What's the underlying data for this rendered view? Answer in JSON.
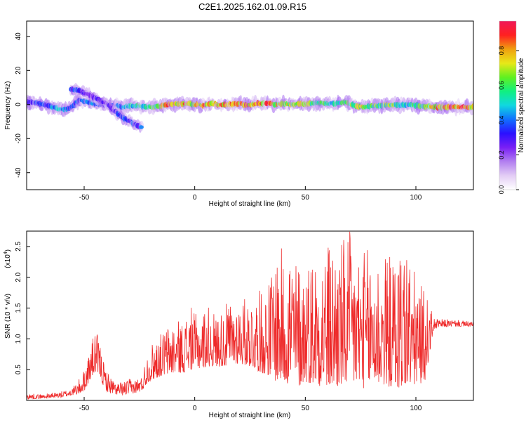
{
  "figure": {
    "title": "C2E1.2025.162.01.09.R15"
  },
  "colors": {
    "axis": "#000000",
    "snr_line": "#ee2a2a",
    "background": "#ffffff",
    "colormap": [
      "#ffffff",
      "#e3cdf5",
      "#b27ff0",
      "#7a1ff5",
      "#2b10ff",
      "#1070ff",
      "#10d8e0",
      "#10f080",
      "#60f020",
      "#e8e818",
      "#f0a010",
      "#ff2020",
      "#f01858"
    ]
  },
  "chart_data": [
    {
      "type": "heatmap",
      "xlabel": "Height of straight line (km)",
      "ylabel": "Frequency (Hz)",
      "xlim": [
        -76,
        126
      ],
      "ylim": [
        -50,
        49
      ],
      "xticks": [
        -50,
        0,
        50,
        100
      ],
      "yticks": [
        40,
        20,
        0,
        -20,
        -40
      ],
      "ytick_labels": [
        "40",
        "20",
        "0",
        "-20",
        "-40"
      ],
      "grid": false,
      "colorbar": {
        "label": "Normalized spectral amplitude",
        "range": [
          0,
          0.97
        ],
        "ticks": [
          0.0,
          0.2,
          0.4,
          0.6,
          0.8
        ],
        "tick_labels": [
          "0.0",
          "0.2",
          "0.4",
          "0.6",
          "0.8"
        ]
      },
      "ridges": [
        {
          "x": [
            -76,
            -72,
            -68,
            -64,
            -60,
            -56,
            -52,
            -48,
            -44,
            -40,
            -36,
            -32,
            -28,
            -24,
            -20,
            -16,
            -12,
            -8,
            -4,
            0,
            4,
            8,
            12,
            16,
            20,
            24,
            28,
            32,
            36,
            40,
            44,
            48,
            52,
            56,
            60,
            64,
            68,
            72,
            76,
            80,
            84,
            88,
            92,
            96,
            100,
            104,
            108,
            112,
            116,
            120,
            124,
            126
          ],
          "freq_hz": [
            1.5,
            1.0,
            0.0,
            -1.5,
            -3.0,
            -2.0,
            3.0,
            1.0,
            0.5,
            0.0,
            -1.0,
            -1.5,
            -0.5,
            -1.0,
            -1.5,
            -1.0,
            0.0,
            0.5,
            0.5,
            0.0,
            -0.5,
            0.5,
            -0.5,
            0.0,
            0.5,
            -0.5,
            0.5,
            1.0,
            0.0,
            0.5,
            0.0,
            0.5,
            0.5,
            1.0,
            0.5,
            0.5,
            1.5,
            -0.5,
            -1.5,
            -1.0,
            -0.5,
            0.0,
            -0.5,
            0.0,
            -0.5,
            -1.0,
            -1.5,
            -1.5,
            -1.5,
            -1.5,
            -1.5,
            -1.5
          ],
          "amplitude": [
            0.35,
            0.4,
            0.35,
            0.45,
            0.5,
            0.4,
            0.45,
            0.4,
            0.45,
            0.35,
            0.4,
            0.5,
            0.55,
            0.6,
            0.65,
            0.75,
            0.85,
            0.8,
            0.85,
            0.8,
            0.85,
            0.8,
            0.85,
            0.9,
            0.85,
            0.9,
            0.85,
            0.9,
            0.8,
            0.75,
            0.8,
            0.75,
            0.7,
            0.65,
            0.6,
            0.55,
            0.6,
            0.7,
            0.75,
            0.7,
            0.65,
            0.7,
            0.6,
            0.55,
            0.6,
            0.7,
            0.85,
            0.9,
            0.9,
            0.9,
            0.9,
            0.9
          ]
        },
        {
          "x": [
            -56,
            -52,
            -48,
            -44,
            -40,
            -38,
            -36,
            -34,
            -32,
            -30,
            -28,
            -26,
            -24
          ],
          "freq_hz": [
            9.0,
            8.0,
            6.0,
            3.0,
            1.0,
            -2.0,
            -4.0,
            -6.0,
            -8.0,
            -9.5,
            -11.0,
            -12.5,
            -13.5
          ],
          "amplitude": [
            0.4,
            0.35,
            0.3,
            0.3,
            0.3,
            0.3,
            0.35,
            0.4,
            0.4,
            0.35,
            0.4,
            0.35,
            0.4
          ]
        }
      ]
    },
    {
      "type": "line",
      "xlabel": "Height of straight line (km)",
      "ylabel": "SNR (10 * v/v)",
      "y_multiplier_label": "(x10",
      "y_multiplier_exp": "4",
      "y_multiplier_close": ")",
      "xlim": [
        -76,
        126
      ],
      "ylim": [
        0,
        2.75
      ],
      "xticks": [
        -50,
        0,
        50,
        100
      ],
      "yticks": [
        0.5,
        1.0,
        1.5,
        2.0,
        2.5
      ],
      "ytick_labels": [
        "0.5",
        "1.0",
        "1.5",
        "2.0",
        "2.5"
      ],
      "grid": false,
      "series": [
        {
          "envelope": {
            "x": [
              -76,
              -70,
              -65,
              -60,
              -56,
              -53,
              -50,
              -47,
              -45,
              -43,
              -41,
              -39,
              -36,
              -33,
              -30,
              -27,
              -24,
              -21,
              -18,
              -15,
              -12,
              -8,
              -5,
              -2,
              0,
              3,
              6,
              10,
              15,
              20,
              25,
              30,
              34,
              37,
              40,
              43,
              46,
              50,
              55,
              60,
              65,
              70,
              75,
              80,
              85,
              90,
              95,
              100,
              104,
              108,
              110,
              115,
              120,
              126
            ],
            "low": [
              0.02,
              0.03,
              0.04,
              0.05,
              0.08,
              0.1,
              0.15,
              0.35,
              0.45,
              0.4,
              0.2,
              0.12,
              0.1,
              0.08,
              0.1,
              0.12,
              0.15,
              0.3,
              0.35,
              0.4,
              0.42,
              0.45,
              0.45,
              0.5,
              0.5,
              0.52,
              0.55,
              0.55,
              0.55,
              0.6,
              0.55,
              0.45,
              0.4,
              0.3,
              0.3,
              0.25,
              0.2,
              0.3,
              0.25,
              0.2,
              0.2,
              0.25,
              0.2,
              0.2,
              0.25,
              0.2,
              0.2,
              0.25,
              0.3,
              1.15,
              1.18,
              1.2,
              1.2,
              1.2
            ],
            "high": [
              0.12,
              0.1,
              0.12,
              0.15,
              0.2,
              0.3,
              0.5,
              0.9,
              1.17,
              0.95,
              0.6,
              0.45,
              0.3,
              0.3,
              0.35,
              0.35,
              0.4,
              0.85,
              1.0,
              1.1,
              1.25,
              1.3,
              1.3,
              1.55,
              1.4,
              1.45,
              1.55,
              1.4,
              1.6,
              1.65,
              1.7,
              1.8,
              2.0,
              2.55,
              2.45,
              2.7,
              2.3,
              2.3,
              2.5,
              2.6,
              2.6,
              2.75,
              2.45,
              2.5,
              2.4,
              2.35,
              2.75,
              2.0,
              1.8,
              1.35,
              1.32,
              1.32,
              1.3,
              1.28
            ]
          }
        }
      ]
    }
  ]
}
